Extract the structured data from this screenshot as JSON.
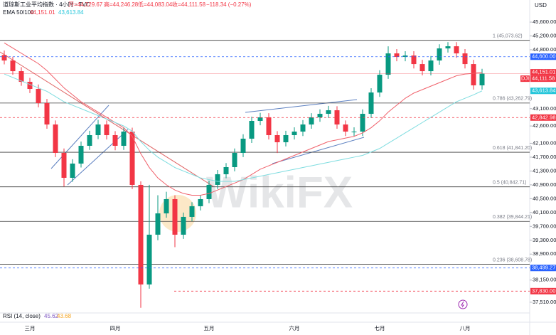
{
  "header": {
    "title": "道琼斯工业平均指数 · 4小时 · TVC",
    "ohlc": [
      "开=44,229.67",
      "高=44,246.28",
      "低=44,083.04",
      "收=44,111.58"
    ],
    "change": "−118.34 (−0.27%)",
    "indicator": "EMA 50/100",
    "readouts": [
      "44,151.01",
      "43,613.84"
    ],
    "rsi": "RSI (14, close)",
    "rsi_readouts": [
      "45.62",
      "43.68"
    ],
    "currency": "USD",
    "watermark": "WikiFX"
  },
  "chart_data": {
    "type": "candlestick",
    "categories": [
      null,
      null,
      null,
      "三月",
      null,
      null,
      null,
      null,
      null,
      null,
      null,
      null,
      null,
      "四月",
      null,
      null,
      null,
      null,
      null,
      null,
      null,
      null,
      null,
      null,
      "五月",
      null,
      null,
      null,
      null,
      null,
      null,
      null,
      null,
      null,
      "六月",
      null,
      null,
      null,
      null,
      null,
      null,
      null,
      null,
      null,
      "七月",
      null,
      null,
      null,
      null,
      null,
      null,
      null,
      null,
      null,
      "八月",
      null,
      null
    ],
    "open": [
      44650,
      44491,
      44183,
      43875,
      43670,
      43259,
      42643,
      41822,
      41103,
      41514,
      42027,
      42335,
      42643,
      42335,
      42027,
      42438,
      40898,
      38023,
      39460,
      40076,
      40487,
      39460,
      39974,
      40282,
      40487,
      40898,
      41206,
      41411,
      41822,
      42233,
      42746,
      42849,
      42335,
      42130,
      42335,
      42438,
      42643,
      42849,
      42951,
      43054,
      42643,
      42438,
      42438,
      42951,
      43567,
      44080,
      44696,
      44594,
      44635,
      44388,
      44183,
      44491,
      44840,
      44902,
      44696,
      44388,
      43773
    ],
    "high": [
      44780,
      44600,
      44300,
      43990,
      43800,
      43380,
      42760,
      41950,
      41640,
      42150,
      42460,
      42780,
      42760,
      42450,
      42560,
      42550,
      41000,
      40900,
      40600,
      40700,
      40600,
      40100,
      40400,
      40610,
      41020,
      41330,
      41530,
      41950,
      42360,
      42870,
      42980,
      42970,
      42450,
      42460,
      42560,
      42770,
      42970,
      43080,
      43180,
      43170,
      42760,
      42560,
      43080,
      43690,
      44210,
      44900,
      44820,
      44760,
      44760,
      44510,
      44620,
      44960,
      45020,
      45020,
      44820,
      44510,
      44250
    ],
    "low": [
      44380,
      44080,
      43760,
      43550,
      43140,
      42520,
      41700,
      40850,
      40990,
      41400,
      41910,
      42220,
      42210,
      41900,
      41910,
      40780,
      37350,
      37900,
      39300,
      39950,
      39100,
      39340,
      39850,
      40160,
      40370,
      40780,
      41090,
      41290,
      41700,
      42110,
      42620,
      42210,
      41820,
      42010,
      42210,
      42310,
      42520,
      42720,
      42830,
      42520,
      42310,
      42310,
      42310,
      42830,
      43440,
      43960,
      44470,
      44470,
      44260,
      44060,
      44060,
      44370,
      44720,
      44570,
      44260,
      43650,
      43650
    ],
    "close": [
      44491,
      44183,
      43875,
      43670,
      43259,
      42643,
      41822,
      41103,
      41514,
      42027,
      42335,
      42643,
      42335,
      42027,
      42438,
      40898,
      38023,
      39460,
      40076,
      40487,
      39460,
      39974,
      40282,
      40487,
      40898,
      41206,
      41411,
      41822,
      42233,
      42746,
      42849,
      42335,
      42130,
      42335,
      42438,
      42643,
      42849,
      42951,
      43054,
      42643,
      42438,
      42438,
      42951,
      43567,
      44080,
      44696,
      44594,
      44635,
      44388,
      44183,
      44491,
      44840,
      44902,
      44696,
      44388,
      43773,
      44111.58
    ],
    "up_color": "#089981",
    "down_color": "#f23645",
    "series": [
      {
        "color": "#f0606a",
        "values": [
          45000,
          44850,
          44700,
          44550,
          44400,
          44200,
          43950,
          43700,
          43500,
          43300,
          43150,
          43000,
          42850,
          42700,
          42550,
          42300,
          41800,
          41400,
          41100,
          40900,
          40750,
          40650,
          40600,
          40600,
          40650,
          40750,
          40850,
          40950,
          41050,
          41200,
          41350,
          41450,
          41550,
          41650,
          41750,
          41850,
          41950,
          42050,
          42150,
          42200,
          42250,
          42300,
          42400,
          42550,
          42750,
          43000,
          43200,
          43400,
          43550,
          43650,
          43750,
          43850,
          43950,
          44050,
          44100,
          44120,
          44151.01
        ]
      },
      {
        "color": "#7fdde0",
        "values": [
          44100,
          44000,
          43900,
          43800,
          43700,
          43600,
          43450,
          43300,
          43200,
          43100,
          43000,
          42900,
          42800,
          42700,
          42600,
          42450,
          42150,
          41900,
          41700,
          41550,
          41400,
          41300,
          41200,
          41100,
          41050,
          41000,
          41000,
          41000,
          41050,
          41100,
          41150,
          41200,
          41250,
          41300,
          41350,
          41400,
          41450,
          41500,
          41550,
          41600,
          41650,
          41700,
          41750,
          41850,
          41950,
          42100,
          42250,
          42400,
          42550,
          42700,
          42850,
          43000,
          43150,
          43300,
          43400,
          43500,
          43613.84
        ]
      }
    ],
    "ylim": [
      37200,
      45930
    ],
    "yticks": [
      {
        "value": 45600,
        "label": "45,600.00"
      },
      {
        "value": 45200,
        "label": "45,200.00"
      },
      {
        "value": 44800,
        "label": "44,800.00"
      },
      {
        "value": 43100,
        "label": "43,100.00"
      },
      {
        "value": 42600,
        "label": "42,600.00"
      },
      {
        "value": 42100,
        "label": "42,100.00"
      },
      {
        "value": 41700,
        "label": "41,700.00"
      },
      {
        "value": 41300,
        "label": "41,300.00"
      },
      {
        "value": 40900,
        "label": "40,900.00"
      },
      {
        "value": 40500,
        "label": "40,500.00"
      },
      {
        "value": 40100,
        "label": "40,100.00"
      },
      {
        "value": 39700,
        "label": "39,700.00"
      },
      {
        "value": 39300,
        "label": "39,300.00"
      },
      {
        "value": 38900,
        "label": "38,900.00"
      },
      {
        "value": 38150,
        "label": "38,150.00"
      },
      {
        "value": 37510,
        "label": "37,510.00"
      }
    ],
    "levels": [
      {
        "value": 45073.62,
        "label": "1 (45,073.62)"
      },
      {
        "value": 43262.79,
        "label": "0.786 (43,262.79)"
      },
      {
        "value": 41841.2,
        "label": "0.618 (41,841.20)"
      },
      {
        "value": 40842.71,
        "label": "0.5 (40,842.71)"
      },
      {
        "value": 39844.21,
        "label": "0.382 (39,844.21)"
      },
      {
        "value": 38608.78,
        "label": "0.236 (38,608.78)"
      }
    ],
    "price_labels": [
      {
        "value": 44600,
        "label": "44,600.00",
        "color": "#2962ff",
        "style": "dashed"
      },
      {
        "value": 44151.01,
        "label": "44,151.01",
        "color": "#f23645",
        "style": "none"
      },
      {
        "value": 44111.58,
        "label": "44,111.58",
        "tag": "DJI",
        "color": "#f23645",
        "style": "solid"
      },
      {
        "value": 43613.84,
        "label": "43,613.84",
        "color": "#26c6da",
        "style": "none"
      },
      {
        "value": 42842.98,
        "label": "42,842.98",
        "color": "#f23645",
        "style": "dashed"
      },
      {
        "value": 38499.27,
        "label": "38,499.27",
        "color": "#2962ff",
        "style": "dashed"
      },
      {
        "value": 37830,
        "label": "37,830.00",
        "color": "#f23645",
        "style": "dashed"
      }
    ]
  }
}
